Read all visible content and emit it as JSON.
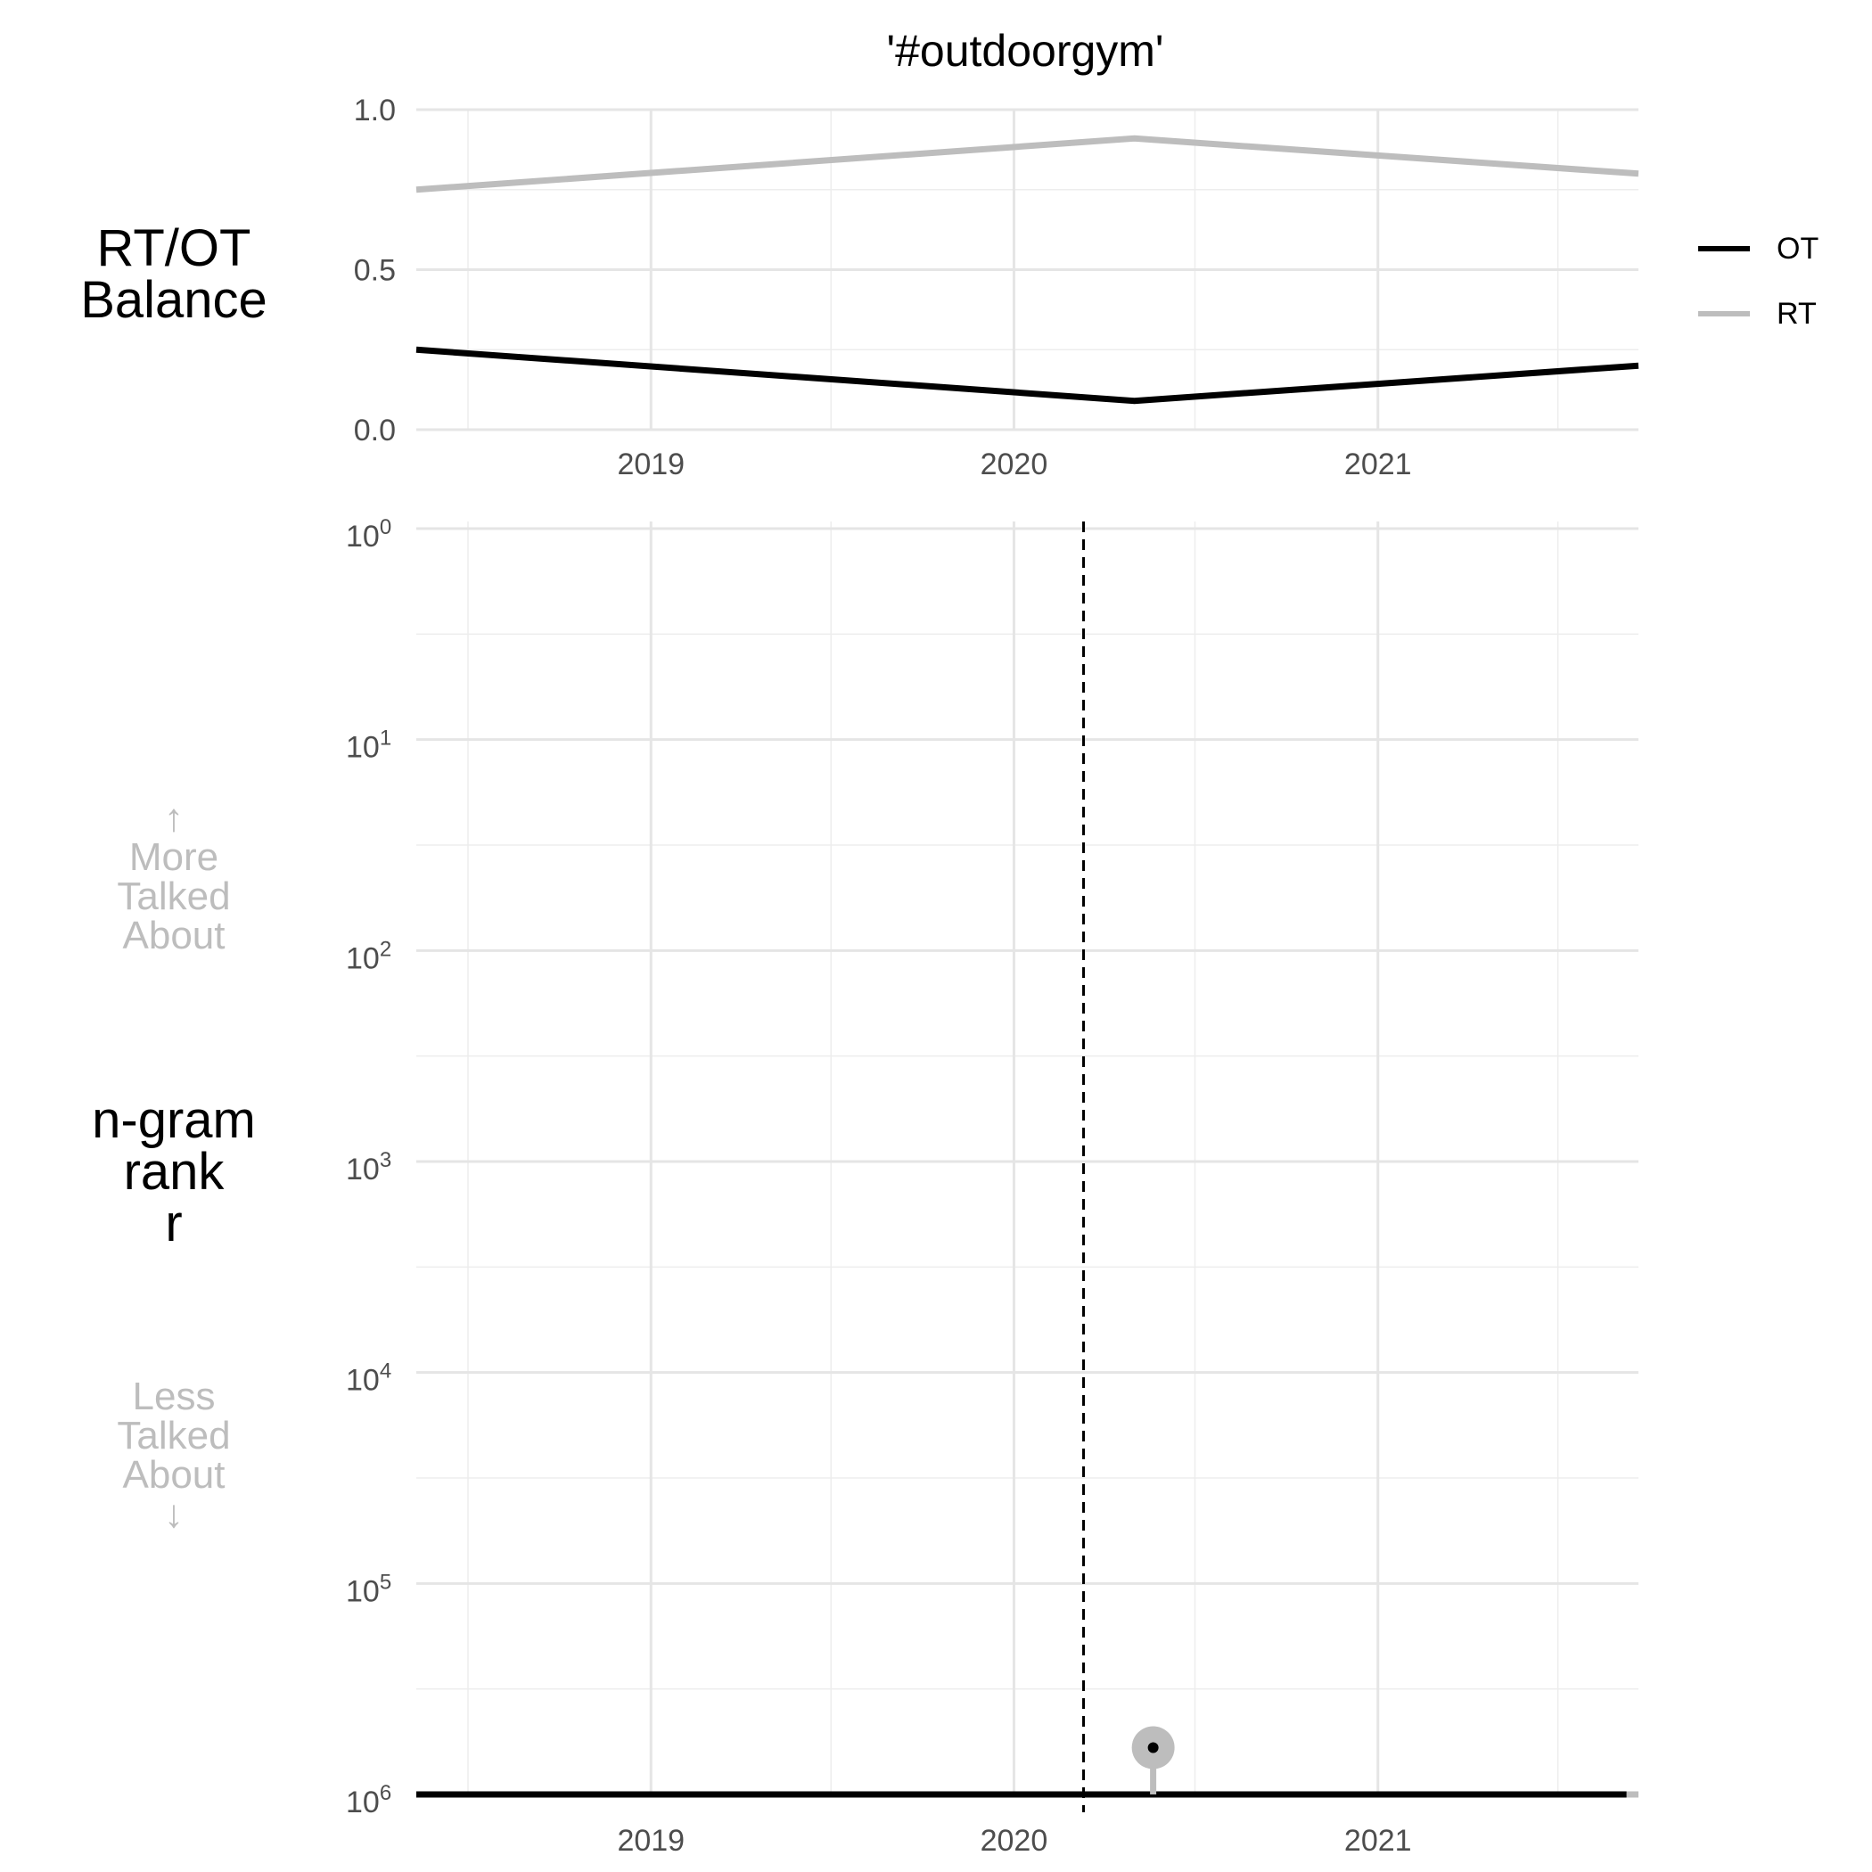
{
  "title": "'#outdoorgym'",
  "labels": {
    "balance": "RT/OT\nBalance",
    "ngram": "n-gram\nrank\nr",
    "more": "↑\nMore\nTalked\nAbout",
    "less": "Less\nTalked\nAbout\n↓"
  },
  "legend": [
    {
      "name": "OT",
      "color": "#000000"
    },
    {
      "name": "RT",
      "color": "#bdbdbd"
    }
  ],
  "chart_data": [
    {
      "type": "line",
      "title": "'#outdoorgym'",
      "ylabel": "RT/OT Balance",
      "ylim": [
        0,
        1
      ],
      "yticks": [
        0.0,
        0.5,
        1.0
      ],
      "ytick_labels": [
        "0.0",
        "0.5",
        "1.0"
      ],
      "xlim": [
        "2018-05-10",
        "2021-09-20"
      ],
      "xtick_labels": [
        "2019",
        "2020",
        "2021"
      ],
      "grid": true,
      "legend_position": "right",
      "series": [
        {
          "name": "OT",
          "color": "#000000",
          "x": [
            "2018-05-10",
            "2020-05-01",
            "2021-09-20"
          ],
          "y": [
            0.25,
            0.09,
            0.2
          ]
        },
        {
          "name": "RT",
          "color": "#bdbdbd",
          "x": [
            "2018-05-10",
            "2020-05-01",
            "2021-09-20"
          ],
          "y": [
            0.75,
            0.91,
            0.8
          ]
        }
      ]
    },
    {
      "type": "line",
      "ylabel": "n-gram rank r",
      "y_scale": "log10",
      "y_reversed": true,
      "ylim": [
        1,
        1000000
      ],
      "ytick_labels": [
        {
          "base": "10",
          "exp": "0"
        },
        {
          "base": "10",
          "exp": "1"
        },
        {
          "base": "10",
          "exp": "2"
        },
        {
          "base": "10",
          "exp": "3"
        },
        {
          "base": "10",
          "exp": "4"
        },
        {
          "base": "10",
          "exp": "5"
        },
        {
          "base": "10",
          "exp": "6"
        }
      ],
      "xlim": [
        "2018-05-10",
        "2021-09-20"
      ],
      "xtick_labels": [
        "2019",
        "2020",
        "2021"
      ],
      "grid": true,
      "reference_line": {
        "x": "2020-03-11",
        "style": "dashed",
        "color": "#000000"
      },
      "series": [
        {
          "name": "RT",
          "color": "#bdbdbd",
          "x": [
            "2018-05-10",
            "2021-09-20"
          ],
          "y": [
            1000000,
            1000000
          ]
        },
        {
          "name": "OT",
          "color": "#000000",
          "x": [
            "2018-05-10",
            "2021-09-08"
          ],
          "y": [
            1000000,
            1000000
          ]
        }
      ],
      "highlight_point": {
        "x": "2020-05-20",
        "y": 600000,
        "outer_color": "#bdbdbd",
        "inner_color": "#000000"
      }
    }
  ]
}
